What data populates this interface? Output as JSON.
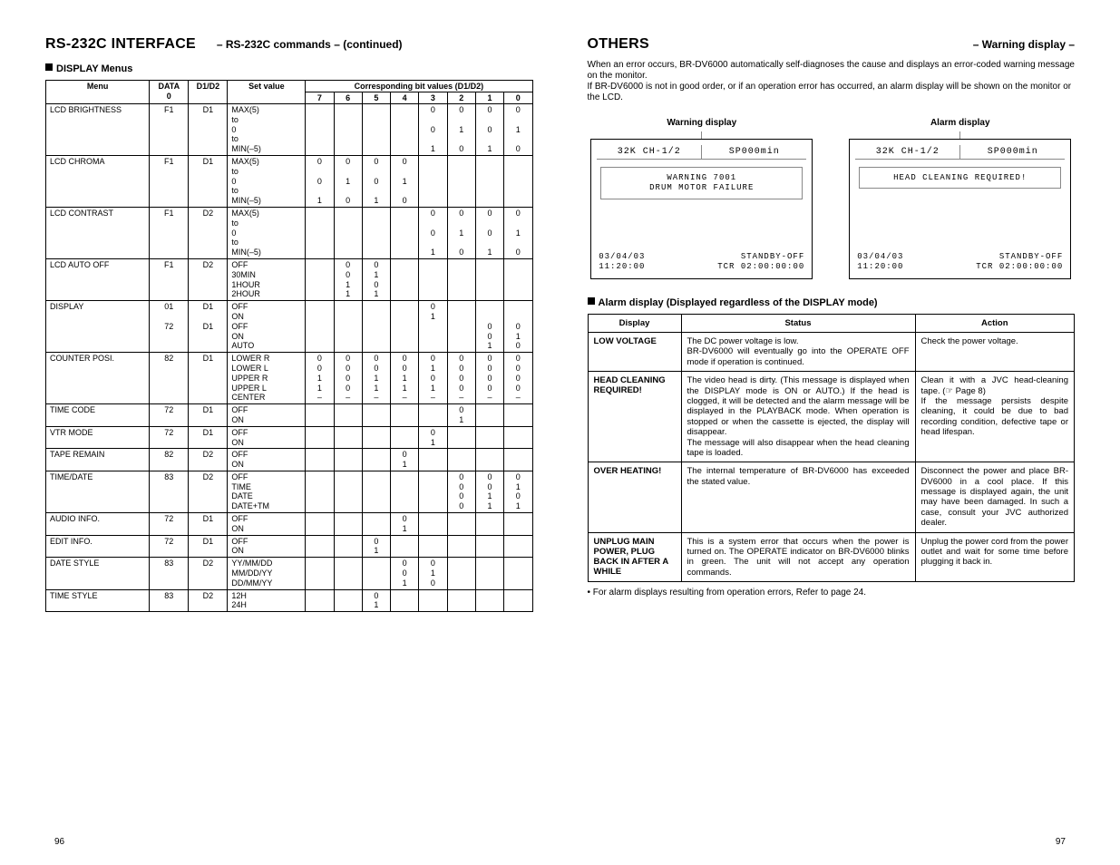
{
  "left": {
    "title": "RS-232C INTERFACE",
    "subtitle": "– RS-232C commands – (continued)",
    "subheading": "DISPLAY Menus",
    "table": {
      "headers": {
        "menu": "Menu",
        "data0": "DATA\n0",
        "d1d2": "D1/D2",
        "setvalue": "Set value",
        "bits_header": "Corresponding bit values (D1/D2)",
        "bits": [
          "7",
          "6",
          "5",
          "4",
          "3",
          "2",
          "1",
          "0"
        ]
      },
      "rows": [
        {
          "menu": "LCD BRIGHTNESS",
          "data": "F1",
          "d": "D1",
          "set": "MAX(5)\nto\n0\nto\nMIN(–5)",
          "bits": {
            "7": "",
            "6": "",
            "5": "",
            "4": "",
            "3": "0\n\n0\n\n1",
            "2": "0\n\n1\n\n0",
            "1": "0\n\n0\n\n1",
            "0": "0\n\n1\n\n0"
          }
        },
        {
          "menu": "LCD CHROMA",
          "data": "F1",
          "d": "D1",
          "set": "MAX(5)\nto\n0\nto\nMIN(–5)",
          "bits": {
            "7": "0\n\n0\n\n1",
            "6": "0\n\n1\n\n0",
            "5": "0\n\n0\n\n1",
            "4": "0\n\n1\n\n0",
            "3": "",
            "2": "",
            "1": "",
            "0": ""
          }
        },
        {
          "menu": "LCD CONTRAST",
          "data": "F1",
          "d": "D2",
          "set": "MAX(5)\nto\n0\nto\nMIN(–5)",
          "bits": {
            "7": "",
            "6": "",
            "5": "",
            "4": "",
            "3": "0\n\n0\n\n1",
            "2": "0\n\n1\n\n0",
            "1": "0\n\n0\n\n1",
            "0": "0\n\n1\n\n0"
          }
        },
        {
          "menu": "LCD AUTO OFF",
          "data": "F1",
          "d": "D2",
          "set": "OFF\n30MIN\n1HOUR\n2HOUR",
          "bits": {
            "7": "",
            "6": "0\n0\n1\n1",
            "5": "0\n1\n0\n1",
            "4": "",
            "3": "",
            "2": "",
            "1": "",
            "0": ""
          }
        },
        {
          "menu": "DISPLAY",
          "data": "01\n\n72",
          "d": "D1\n\nD1",
          "set": "OFF\nON\nOFF\nON\nAUTO",
          "bits": {
            "7": "",
            "6": "",
            "5": "",
            "4": "",
            "3": "0\n1",
            "2": "",
            "1": "\n\n0\n0\n1",
            "0": "\n\n0\n1\n0"
          }
        },
        {
          "menu": "COUNTER POSI.",
          "data": "82",
          "d": "D1",
          "set": "LOWER R\nLOWER L\nUPPER R\nUPPER L\nCENTER",
          "bits": {
            "7": "0\n0\n1\n1\n–",
            "6": "0\n0\n0\n0\n–",
            "5": "0\n0\n1\n1\n–",
            "4": "0\n0\n1\n1\n–",
            "3": "0\n1\n0\n1\n–",
            "2": "0\n0\n0\n0\n–",
            "1": "0\n0\n0\n0\n–",
            "0": "0\n0\n0\n0\n–"
          }
        },
        {
          "menu": "TIME CODE",
          "data": "72",
          "d": "D1",
          "set": "OFF\nON",
          "bits": {
            "7": "",
            "6": "",
            "5": "",
            "4": "",
            "3": "",
            "2": "0\n1",
            "1": "",
            "0": ""
          }
        },
        {
          "menu": "VTR MODE",
          "data": "72",
          "d": "D1",
          "set": "OFF\nON",
          "bits": {
            "7": "",
            "6": "",
            "5": "",
            "4": "",
            "3": "0\n1",
            "2": "",
            "1": "",
            "0": ""
          }
        },
        {
          "menu": "TAPE REMAIN",
          "data": "82",
          "d": "D2",
          "set": "OFF\nON",
          "bits": {
            "7": "",
            "6": "",
            "5": "",
            "4": "0\n1",
            "3": "",
            "2": "",
            "1": "",
            "0": ""
          }
        },
        {
          "menu": "TIME/DATE",
          "data": "83",
          "d": "D2",
          "set": "OFF\nTIME\nDATE\nDATE+TM",
          "bits": {
            "7": "",
            "6": "",
            "5": "",
            "4": "",
            "3": "",
            "2": "0\n0\n0\n0",
            "1": "0\n0\n1\n1",
            "0": "0\n1\n0\n1"
          }
        },
        {
          "menu": "AUDIO INFO.",
          "data": "72",
          "d": "D1",
          "set": "OFF\nON",
          "bits": {
            "7": "",
            "6": "",
            "5": "",
            "4": "0\n1",
            "3": "",
            "2": "",
            "1": "",
            "0": ""
          }
        },
        {
          "menu": "EDIT INFO.",
          "data": "72",
          "d": "D1",
          "set": "OFF\nON",
          "bits": {
            "7": "",
            "6": "",
            "5": "0\n1",
            "4": "",
            "3": "",
            "2": "",
            "1": "",
            "0": ""
          }
        },
        {
          "menu": "DATE STYLE",
          "data": "83",
          "d": "D2",
          "set": "YY/MM/DD\nMM/DD/YY\nDD/MM/YY",
          "bits": {
            "7": "",
            "6": "",
            "5": "",
            "4": "0\n0\n1",
            "3": "0\n1\n0",
            "2": "",
            "1": "",
            "0": ""
          }
        },
        {
          "menu": "TIME STYLE",
          "data": "83",
          "d": "D2",
          "set": "12H\n24H",
          "bits": {
            "7": "",
            "6": "",
            "5": "0\n1",
            "4": "",
            "3": "",
            "2": "",
            "1": "",
            "0": ""
          }
        }
      ]
    },
    "page_num": "96"
  },
  "right": {
    "title": "OTHERS",
    "subtitle": "– Warning display –",
    "intro": "When an error occurs, BR-DV6000 automatically self-diagnoses the cause and displays an error-coded warning message on the monitor.\nIf BR-DV6000 is not in good order, or if an operation error has occurred, an alarm display will be shown on the monitor or the LCD.",
    "monitors": {
      "warning": {
        "label": "Warning display",
        "top_left": "32K CH-1/2",
        "top_right": "SP000min",
        "mid": "WARNING 7001\nDRUM MOTOR FAILURE",
        "bot1_l": "03/04/03",
        "bot1_r": "STANDBY-OFF",
        "bot2_l": "11:20:00",
        "bot2_r": "TCR 02:00:00:00"
      },
      "alarm": {
        "label": "Alarm display",
        "top_left": "32K CH-1/2",
        "top_right": "SP000min",
        "mid": "HEAD CLEANING REQUIRED!",
        "bot1_l": "03/04/03",
        "bot1_r": "STANDBY-OFF",
        "bot2_l": "11:20:00",
        "bot2_r": "TCR 02:00:00:00"
      }
    },
    "alarm_heading": "Alarm display (Displayed regardless of the DISPLAY mode)",
    "alarm_table": {
      "headers": {
        "display": "Display",
        "status": "Status",
        "action": "Action"
      },
      "rows": [
        {
          "display": "LOW VOLTAGE",
          "status": "The DC power voltage is low.\nBR-DV6000 will eventually go into the OPERATE OFF mode if operation is continued.",
          "action": "Check the power voltage."
        },
        {
          "display": "HEAD CLEANING REQUIRED!",
          "status": "The video head is dirty. (This message is displayed when the DISPLAY mode is ON or AUTO.) If the head is clogged, it will be detected and the alarm message will be displayed in the PLAYBACK mode. When operation is stopped or when the cassette is ejected, the display will disappear.\nThe message will also disappear when the head cleaning tape is loaded.",
          "action": "Clean it with a JVC head-cleaning tape. (☞ Page 8)\nIf the message persists despite cleaning, it could be due to bad recording condition, defective tape or head lifespan."
        },
        {
          "display": "OVER HEATING!",
          "status": "The internal temperature of BR-DV6000 has exceeded the stated value.",
          "action": "Disconnect the power and place BR-DV6000 in a cool place. If this message is displayed again, the unit may have been damaged. In such a case, consult your JVC authorized dealer."
        },
        {
          "display": "UNPLUG MAIN POWER, PLUG BACK IN AFTER A WHILE",
          "status": "This is a system error that occurs when the power is turned on. The OPERATE indicator on BR-DV6000 blinks in green. The unit will not accept any operation commands.",
          "action": "Unplug the power cord from the power outlet and wait for some time before plugging it back in."
        }
      ]
    },
    "footnote": "• For alarm displays resulting from operation errors, Refer to page 24.",
    "page_num": "97"
  }
}
